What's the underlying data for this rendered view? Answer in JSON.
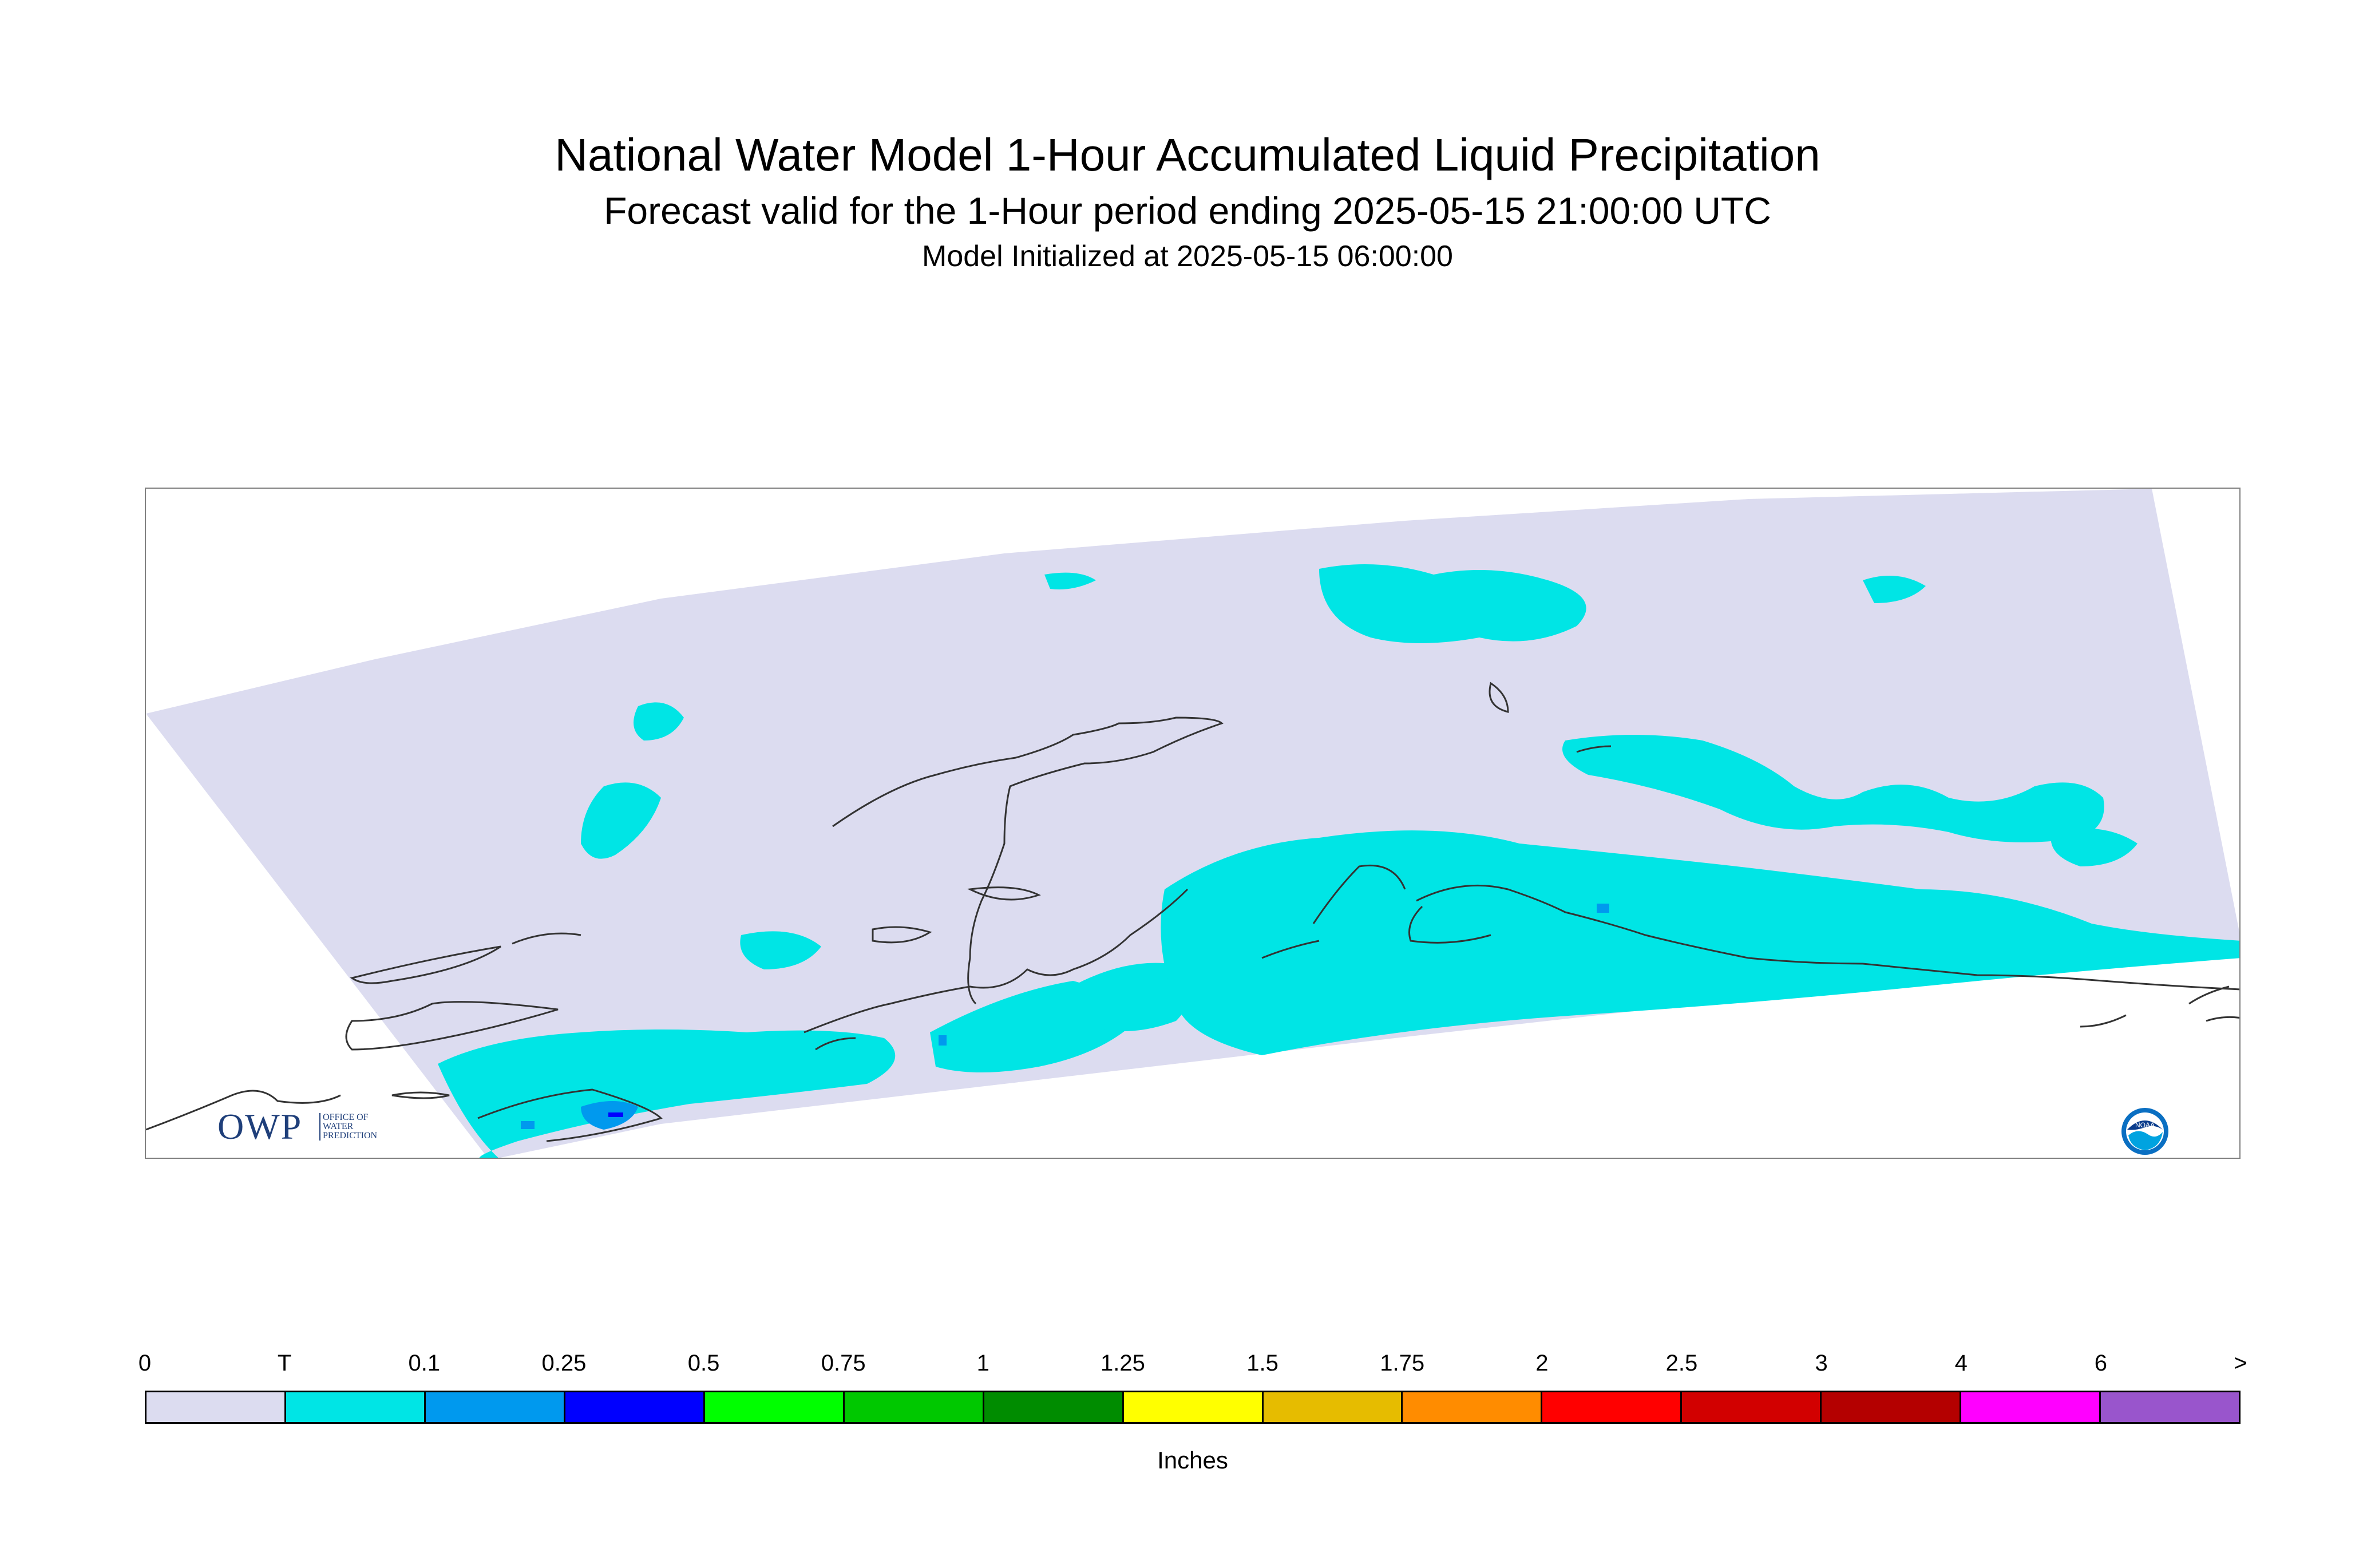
{
  "header": {
    "title": "National Water Model 1-Hour Accumulated Liquid Precipitation",
    "subtitle": "Forecast valid for the 1-Hour period ending 2025-05-15 21:00:00 UTC",
    "init_line": "Model Initialized at 2025-05-15 06:00:00"
  },
  "map": {
    "region": "Alaska (south-central)",
    "domain_fill_color": "#dcdcf0",
    "coastline_color": "#333333",
    "light_precip_color": "#00e5e5",
    "moderate_precip_color": "#0099ee",
    "heavy_precip_color": "#0000ff"
  },
  "logos": {
    "owp_letters": "OWP",
    "owp_lines": [
      "OFFICE OF",
      "WATER",
      "PREDICTION"
    ],
    "noaa_text": "NOAA"
  },
  "legend": {
    "units_label": "Inches",
    "tick_labels": [
      "0",
      "T",
      "0.1",
      "0.25",
      "0.5",
      "0.75",
      "1",
      "1.25",
      "1.5",
      "1.75",
      "2",
      "2.5",
      "3",
      "4",
      "6",
      ">"
    ],
    "colors": [
      "#dcdcf0",
      "#00e5e5",
      "#0099ee",
      "#0000ff",
      "#00ff00",
      "#00c800",
      "#008c00",
      "#ffff00",
      "#e6bc00",
      "#ff8c00",
      "#ff0000",
      "#d20000",
      "#b40000",
      "#ff00ff",
      "#9955cc"
    ]
  }
}
